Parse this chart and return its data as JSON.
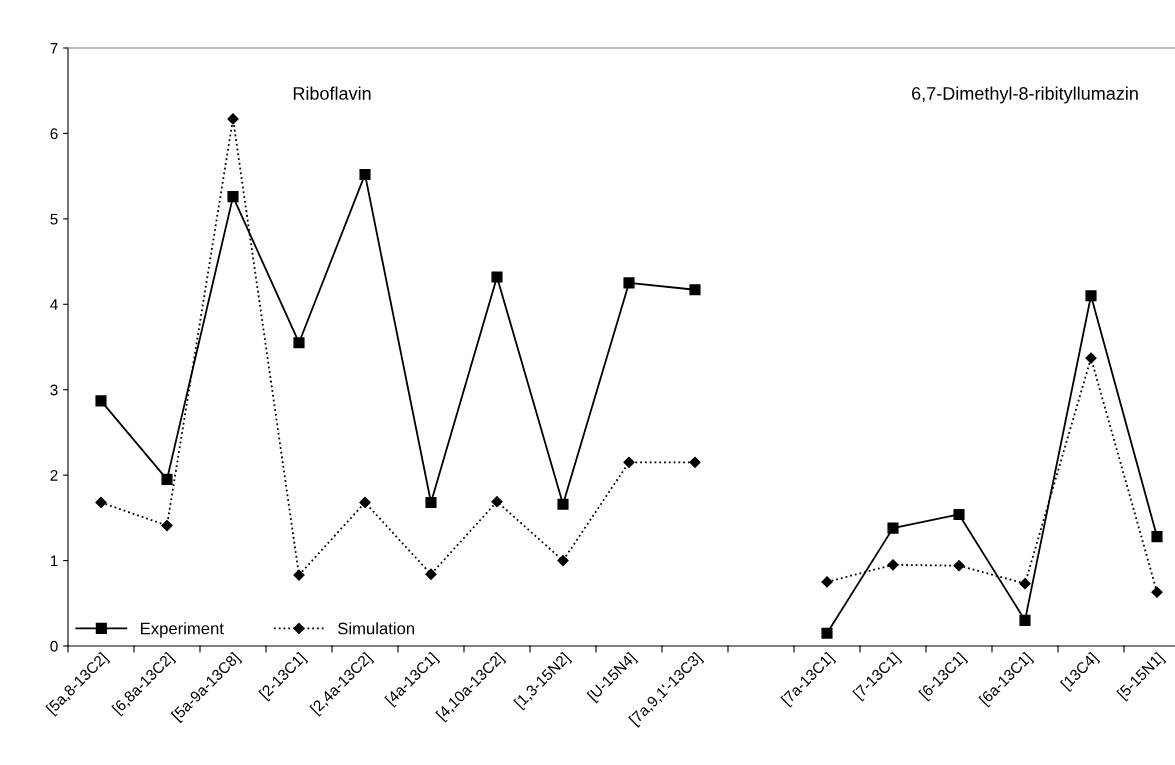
{
  "chart_data": {
    "type": "line",
    "categories": [
      "[5a,8-13C2]",
      "[6,8a-13C2]",
      "[5a-9a-13C8]",
      "[2-13C1]",
      "[2,4a-13C2]",
      "[4a-13C1]",
      "[4,10a-13C2]",
      "[1,3-15N2]",
      "[U-15N4]",
      "[7a,9,1'-13C3]",
      null,
      "[7a-13C1]",
      "[7-13C1]",
      "[6-13C1]",
      "[6a-13C1]",
      "[13C4]",
      "[5-15N1]"
    ],
    "series": [
      {
        "name": "Experiment",
        "color": "#000000",
        "marker": "square",
        "line_style": "solid",
        "values": [
          2.87,
          1.95,
          5.26,
          3.55,
          5.52,
          1.68,
          4.32,
          1.66,
          4.25,
          4.17,
          null,
          0.15,
          1.38,
          1.54,
          0.3,
          4.1,
          1.28
        ]
      },
      {
        "name": "Simulation",
        "color": "#000000",
        "marker": "diamond",
        "line_style": "dotted",
        "values": [
          1.68,
          1.41,
          6.17,
          0.83,
          1.68,
          0.84,
          1.69,
          1.0,
          2.15,
          2.15,
          null,
          0.75,
          0.95,
          0.94,
          0.73,
          3.37,
          0.63
        ]
      }
    ],
    "ylim": [
      0,
      7
    ],
    "yticks": [
      0,
      1,
      2,
      3,
      4,
      5,
      6,
      7
    ],
    "grid": false,
    "legend": "bottom left",
    "annotations": [
      "Riboflavin",
      "6,7-Dimethyl-8-ribityllumazin"
    ]
  }
}
